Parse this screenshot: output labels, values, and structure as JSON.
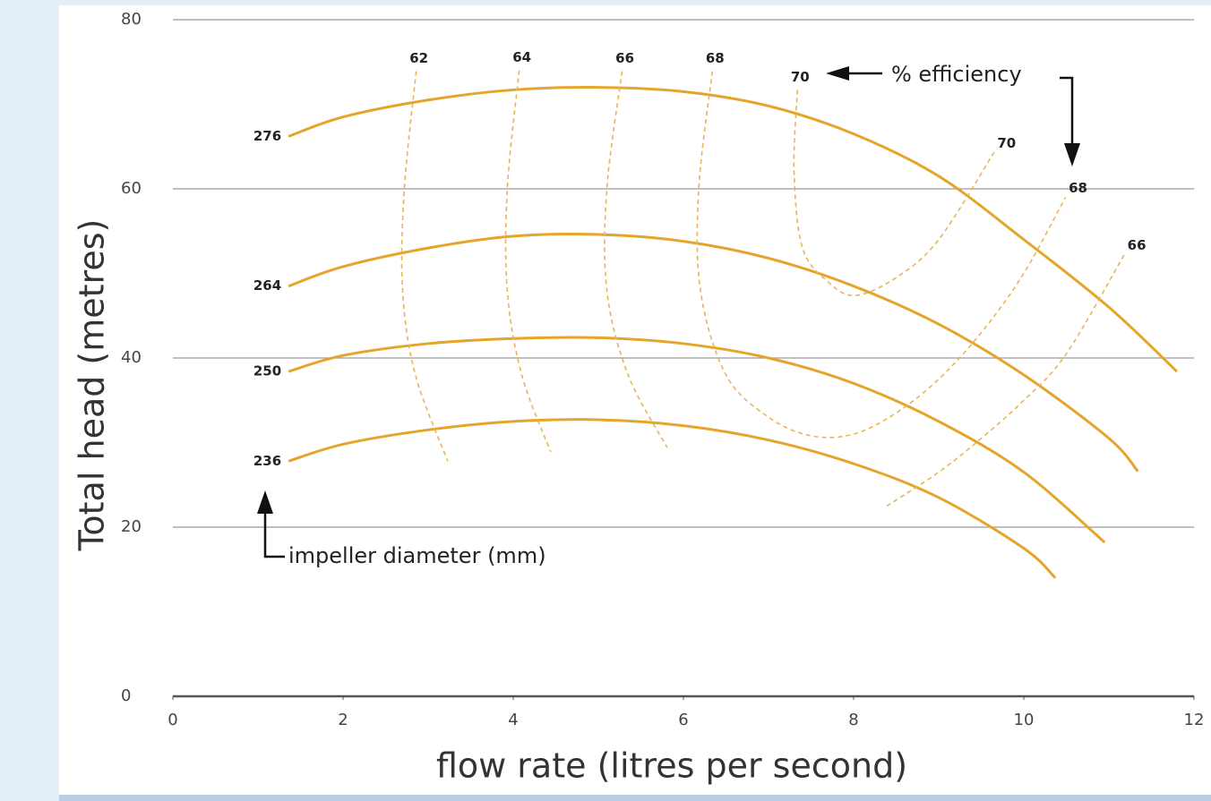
{
  "chart_data": {
    "type": "line",
    "y_label": "Total head (metres)",
    "x_label": "flow rate (litres per second)",
    "efficiency_note": "% efficiency",
    "impeller_note": "impeller diameter (mm)",
    "xlim": [
      0,
      12
    ],
    "xticks": [
      0,
      2,
      4,
      6,
      8,
      10,
      12
    ],
    "ylim": [
      0,
      80
    ],
    "yticks": [
      0,
      20,
      40,
      60,
      80
    ],
    "grid": true,
    "series": [
      {
        "name": "276",
        "color": "#e5a52a",
        "dashed": false,
        "x": [
          1.36,
          2,
          3,
          4,
          5,
          6,
          7,
          8,
          9,
          10,
          11,
          11.8
        ],
        "values": [
          66.2,
          68.5,
          70.5,
          71.7,
          72,
          71.5,
          69.8,
          66.5,
          61.5,
          54,
          46,
          38.4
        ]
      },
      {
        "name": "264",
        "color": "#e5a52a",
        "dashed": false,
        "x": [
          1.36,
          2,
          3,
          4,
          5,
          6,
          7,
          8,
          9,
          10,
          11,
          11.34
        ],
        "values": [
          48.5,
          50.8,
          53,
          54.4,
          54.6,
          53.8,
          51.8,
          48.5,
          44,
          38,
          30.5,
          26.6
        ]
      },
      {
        "name": "250",
        "color": "#e5a52a",
        "dashed": false,
        "x": [
          1.36,
          2,
          3,
          4,
          5,
          6,
          7,
          8,
          9,
          10,
          10.95
        ],
        "values": [
          38.4,
          40.3,
          41.7,
          42.3,
          42.4,
          41.7,
          40,
          37,
          32.5,
          26.5,
          18.2
        ]
      },
      {
        "name": "236",
        "color": "#e5a52a",
        "dashed": false,
        "x": [
          1.36,
          2,
          3,
          4,
          5,
          6,
          7,
          8,
          9,
          10,
          10.37
        ],
        "values": [
          27.8,
          29.8,
          31.5,
          32.5,
          32.7,
          32,
          30.3,
          27.5,
          23.5,
          17.5,
          14
        ]
      },
      {
        "name": "62",
        "color": "#e8b45a",
        "dashed": true,
        "x": [
          2.86,
          2.72,
          2.7,
          2.85,
          3.23
        ],
        "values": [
          73.9,
          60,
          48,
          38,
          27.8
        ]
      },
      {
        "name": "64",
        "color": "#e8b45a",
        "dashed": true,
        "x": [
          4.07,
          3.93,
          3.93,
          4.1,
          4.44
        ],
        "values": [
          74,
          60,
          48,
          38,
          28.9
        ]
      },
      {
        "name": "66",
        "color": "#e8b45a",
        "dashed": true,
        "x": [
          5.28,
          5.1,
          5.1,
          5.35,
          5.81
        ],
        "values": [
          73.9,
          60,
          48,
          38,
          29.4
        ]
      },
      {
        "name": "68",
        "color": "#e8b45a",
        "dashed": true,
        "x": [
          6.34,
          6.18,
          6.2,
          6.5,
          7,
          7.5,
          8,
          8.5,
          9,
          9.5,
          10,
          10.49
        ],
        "values": [
          73.9,
          60,
          48,
          38,
          33,
          30.8,
          31,
          33.5,
          37.5,
          43,
          50,
          59
        ]
      },
      {
        "name": "70",
        "color": "#e8b45a",
        "dashed": true,
        "x": [
          7.34,
          7.3,
          7.4,
          7.7,
          8.02,
          8.5,
          9,
          9.65
        ],
        "values": [
          71.7,
          62,
          53,
          49,
          47.4,
          49.5,
          54,
          64.3
        ]
      },
      {
        "name": "66",
        "color": "#e8b45a",
        "dashed": true,
        "x": [
          8.39,
          9,
          9.5,
          10,
          10.5,
          11.18
        ],
        "values": [
          22.5,
          26.5,
          30.5,
          35,
          40.5,
          52.2
        ]
      }
    ]
  }
}
